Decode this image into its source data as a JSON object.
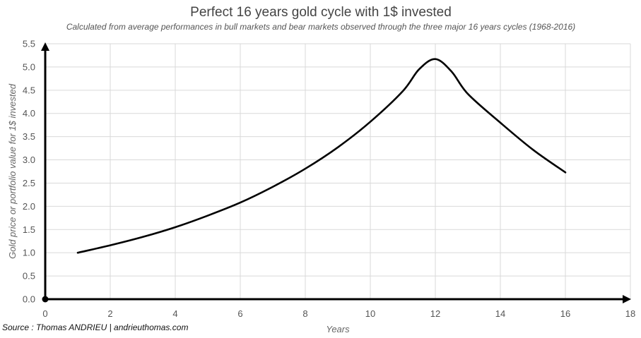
{
  "chart_data": {
    "type": "line",
    "title": "Perfect 16 years gold cycle with 1$ invested",
    "subtitle": "Calculated from average performances in bull markets and bear markets observed through the three major 16 years cycles (1968-2016)",
    "xlabel": "Years",
    "ylabel": "Gold price or portfolio value for 1$ invested",
    "source": "Source : Thomas ANDRIEU | andrieuthomas.com",
    "xlim": [
      0,
      18
    ],
    "ylim": [
      0,
      5.5
    ],
    "xticks": [
      "0",
      "2",
      "4",
      "6",
      "8",
      "10",
      "12",
      "14",
      "16",
      "18"
    ],
    "yticks": [
      "0.0",
      "0.5",
      "1.0",
      "1.5",
      "2.0",
      "2.5",
      "3.0",
      "3.5",
      "4.0",
      "4.5",
      "5.0",
      "5.5"
    ],
    "grid": true,
    "series": [
      {
        "x": [
          1,
          2,
          3,
          4,
          5,
          6,
          7,
          8,
          9,
          10,
          11,
          11.5,
          12,
          12.5,
          13,
          14,
          15,
          16
        ],
        "y": [
          1.0,
          1.16,
          1.34,
          1.55,
          1.8,
          2.08,
          2.42,
          2.81,
          3.27,
          3.82,
          4.48,
          4.95,
          5.17,
          4.9,
          4.42,
          3.8,
          3.22,
          2.73
        ]
      }
    ],
    "colors": {
      "line": "#000000",
      "grid": "#d9d9d9",
      "axis": "#000000"
    }
  }
}
